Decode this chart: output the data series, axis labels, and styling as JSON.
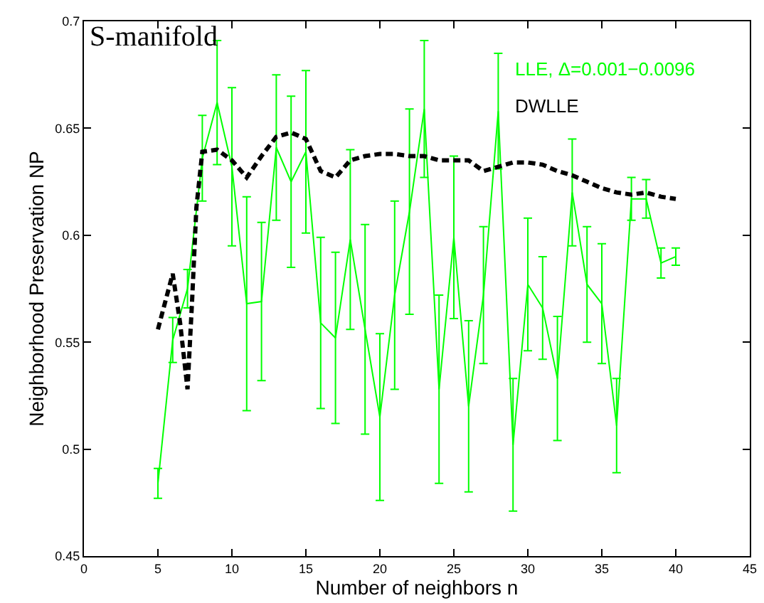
{
  "chart_data": {
    "type": "line",
    "title": "S-manifold",
    "xlabel": "Number of neighbors n",
    "ylabel": "Neighborhood Preservation NP",
    "xlim": [
      0,
      45
    ],
    "xticks": [
      0,
      5,
      10,
      15,
      20,
      25,
      30,
      35,
      40,
      45
    ],
    "ylim": [
      0.45,
      0.7
    ],
    "yticks": [
      0.45,
      0.5,
      0.55,
      0.6,
      0.65,
      0.7
    ],
    "grid": false,
    "legend": "top right",
    "marker": "none",
    "series": [
      {
        "name": "LLE, Δ=0.001−0.0096",
        "color": "#00ff00",
        "line_style": "solid",
        "x": [
          5,
          6,
          7,
          8,
          9,
          10,
          11,
          12,
          13,
          14,
          15,
          16,
          17,
          18,
          19,
          20,
          21,
          22,
          23,
          24,
          25,
          26,
          27,
          28,
          29,
          30,
          31,
          32,
          33,
          34,
          35,
          36,
          37,
          38,
          39,
          40
        ],
        "values": [
          0.484,
          0.551,
          0.575,
          0.636,
          0.662,
          0.632,
          0.568,
          0.569,
          0.641,
          0.625,
          0.639,
          0.559,
          0.552,
          0.598,
          0.556,
          0.515,
          0.572,
          0.611,
          0.659,
          0.528,
          0.599,
          0.52,
          0.572,
          0.658,
          0.502,
          0.577,
          0.566,
          0.533,
          0.62,
          0.577,
          0.568,
          0.511,
          0.617,
          0.617,
          0.587,
          0.59
        ],
        "errors": [
          0.007,
          0.0105,
          0.009,
          0.02,
          0.029,
          0.037,
          0.05,
          0.037,
          0.034,
          0.04,
          0.038,
          0.04,
          0.04,
          0.042,
          0.049,
          0.039,
          0.044,
          0.048,
          0.032,
          0.044,
          0.038,
          0.04,
          0.032,
          0.027,
          0.031,
          0.031,
          0.024,
          0.029,
          0.025,
          0.027,
          0.028,
          0.022,
          0.01,
          0.009,
          0.007,
          0.004
        ]
      },
      {
        "name": "DWLLE",
        "color": "#000000",
        "line_style": "dashed",
        "x": [
          5,
          6,
          6.5,
          7,
          7.3,
          7.6,
          8,
          9,
          10,
          11,
          12,
          13,
          14,
          15,
          16,
          17,
          18,
          19,
          20,
          21,
          22,
          23,
          24,
          25,
          26,
          27,
          28,
          29,
          30,
          31,
          32,
          33,
          34,
          35,
          36,
          37,
          38,
          39,
          40
        ],
        "values": [
          0.556,
          0.582,
          0.559,
          0.528,
          0.568,
          0.613,
          0.639,
          0.64,
          0.635,
          0.627,
          0.637,
          0.646,
          0.648,
          0.645,
          0.63,
          0.627,
          0.635,
          0.637,
          0.638,
          0.638,
          0.637,
          0.637,
          0.635,
          0.635,
          0.635,
          0.63,
          0.632,
          0.634,
          0.634,
          0.633,
          0.63,
          0.628,
          0.625,
          0.622,
          0.62,
          0.619,
          0.62,
          0.618,
          0.617
        ]
      }
    ]
  }
}
